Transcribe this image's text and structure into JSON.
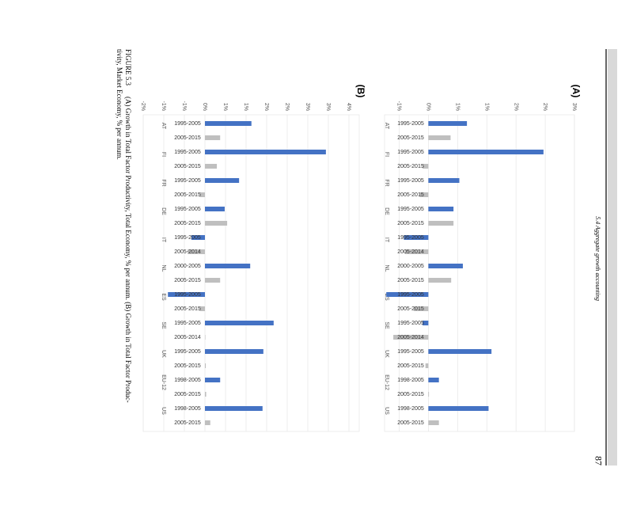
{
  "header": "5.4 Aggregate growth accounting",
  "page_number": "87",
  "caption_lines": [
    "FIGURE 5.3",
    "(A) Growth in Total Factor Productivity, Total Economy, % per annum. (B) Growth in Total Factor Produc-",
    "tivity, Market Economy, % per annum."
  ],
  "chart_data": [
    {
      "type": "bar",
      "title": "(A)",
      "categories": [
        "AT",
        "FI",
        "FR",
        "DE",
        "IT",
        "NL",
        "ES",
        "SE",
        "UK",
        "EU-12",
        "US"
      ],
      "period_labels": [
        [
          "1995-2005",
          "2005-2015"
        ],
        [
          "1995-2005",
          "2005-2015"
        ],
        [
          "1995-2005",
          "2005-2015"
        ],
        [
          "1995-2005",
          "2005-2015"
        ],
        [
          "1995-2005",
          "2005-2014"
        ],
        [
          "2000-2005",
          "2005-2015"
        ],
        [
          "1995-2005",
          "2005-2015"
        ],
        [
          "1995-2005",
          "2005-2014"
        ],
        [
          "1995-2005",
          "2005-2015"
        ],
        [
          "1998-2005",
          "2005-2015"
        ],
        [
          "1998-2005",
          "2005-2015"
        ]
      ],
      "series": [
        {
          "color": "#4472c4",
          "values": [
            0.66,
            1.97,
            0.53,
            0.43,
            -0.42,
            0.59,
            -0.72,
            -0.1,
            1.08,
            0.18,
            1.03
          ]
        },
        {
          "color": "#bfbfbf",
          "values": [
            0.38,
            -0.1,
            -0.15,
            0.43,
            -0.4,
            0.39,
            -0.25,
            -0.6,
            -0.05,
            0.01,
            0.18
          ]
        }
      ],
      "ylim": [
        -0.75,
        2.5
      ],
      "yticks": [
        {
          "value": -0.5,
          "label": "-1%"
        },
        {
          "value": 0,
          "label": "0%"
        },
        {
          "value": 0.5,
          "label": "1%"
        },
        {
          "value": 1,
          "label": "1%"
        },
        {
          "value": 1.5,
          "label": "2%"
        },
        {
          "value": 2,
          "label": "2%"
        },
        {
          "value": 2.5,
          "label": "3%"
        }
      ],
      "grid": true
    },
    {
      "type": "bar",
      "title": "(B)",
      "categories": [
        "AT",
        "FI",
        "FR",
        "DE",
        "IT",
        "NL",
        "ES",
        "SE",
        "UK",
        "EU-12",
        "US"
      ],
      "period_labels": [
        [
          "1995-2005",
          "2005-2015"
        ],
        [
          "1995-2005",
          "2005-2015"
        ],
        [
          "1995-2005",
          "2005-2015"
        ],
        [
          "1995-2005",
          "2005-2015"
        ],
        [
          "1995-2005",
          "2005-2014"
        ],
        [
          "2000-2005",
          "2005-2015"
        ],
        [
          "1995-2005",
          "2005-2015"
        ],
        [
          "1995-2005",
          "2005-2014"
        ],
        [
          "1995-2005",
          "2005-2015"
        ],
        [
          "1998-2005",
          "2005-2015"
        ],
        [
          "1998-2005",
          "2005-2015"
        ]
      ],
      "series": [
        {
          "color": "#4472c4",
          "values": [
            1.13,
            2.94,
            0.83,
            0.48,
            -0.33,
            1.1,
            -0.9,
            1.67,
            1.42,
            0.37,
            1.4
          ]
        },
        {
          "color": "#bfbfbf",
          "values": [
            0.37,
            0.29,
            -0.13,
            0.54,
            -0.42,
            0.37,
            -0.13,
            0.01,
            0.02,
            0.03,
            0.13
          ]
        }
      ],
      "ylim": [
        -1.5,
        3.75
      ],
      "yticks": [
        {
          "value": -1.5,
          "label": "-2%"
        },
        {
          "value": -1,
          "label": "-1%"
        },
        {
          "value": -0.5,
          "label": "-1%"
        },
        {
          "value": 0,
          "label": "0%"
        },
        {
          "value": 0.5,
          "label": "1%"
        },
        {
          "value": 1,
          "label": "1%"
        },
        {
          "value": 1.5,
          "label": "2%"
        },
        {
          "value": 2,
          "label": "2%"
        },
        {
          "value": 2.5,
          "label": "3%"
        },
        {
          "value": 3,
          "label": "3%"
        },
        {
          "value": 3.5,
          "label": "4%"
        }
      ],
      "grid": true
    }
  ]
}
